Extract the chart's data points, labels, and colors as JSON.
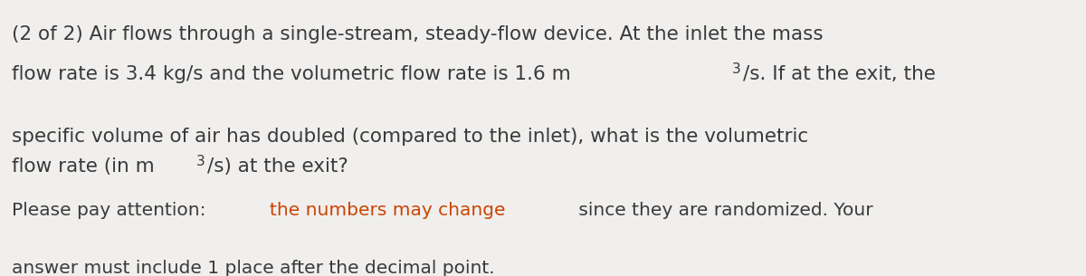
{
  "background_color": "#f0efee",
  "line1": "(2 of 2) Air flows through a single-stream, steady-flow device. At the inlet the mass",
  "line2_parts": [
    {
      "text": "flow rate is 3.4 kg/s and the volumetric flow rate is 1.6 m",
      "color": "#3a3a3a"
    },
    {
      "text": "3",
      "color": "#3a3a3a",
      "superscript": true
    },
    {
      "text": "/s. If at the exit, the",
      "color": "#3a3a3a"
    }
  ],
  "line3": "specific volume of air has doubled (compared to the inlet), what is the volumetric",
  "line4_parts": [
    {
      "text": "flow rate (in m",
      "color": "#3a3a3a"
    },
    {
      "text": "3",
      "color": "#3a3a3a",
      "superscript": true
    },
    {
      "text": "/s) at the exit?",
      "color": "#3a3a3a"
    }
  ],
  "line5_parts": [
    {
      "text": "Please pay attention: ",
      "color": "#3a3a3a"
    },
    {
      "text": "the numbers may change",
      "color": "#cc4400"
    },
    {
      "text": " since they are randomized. Your",
      "color": "#3a3a3a"
    }
  ],
  "line6": "answer must include 1 place after the decimal point.",
  "text_color": "#3a3a3a",
  "highlight_color": "#cc4400",
  "font_size": 15.5,
  "font_size_note": 14.5
}
